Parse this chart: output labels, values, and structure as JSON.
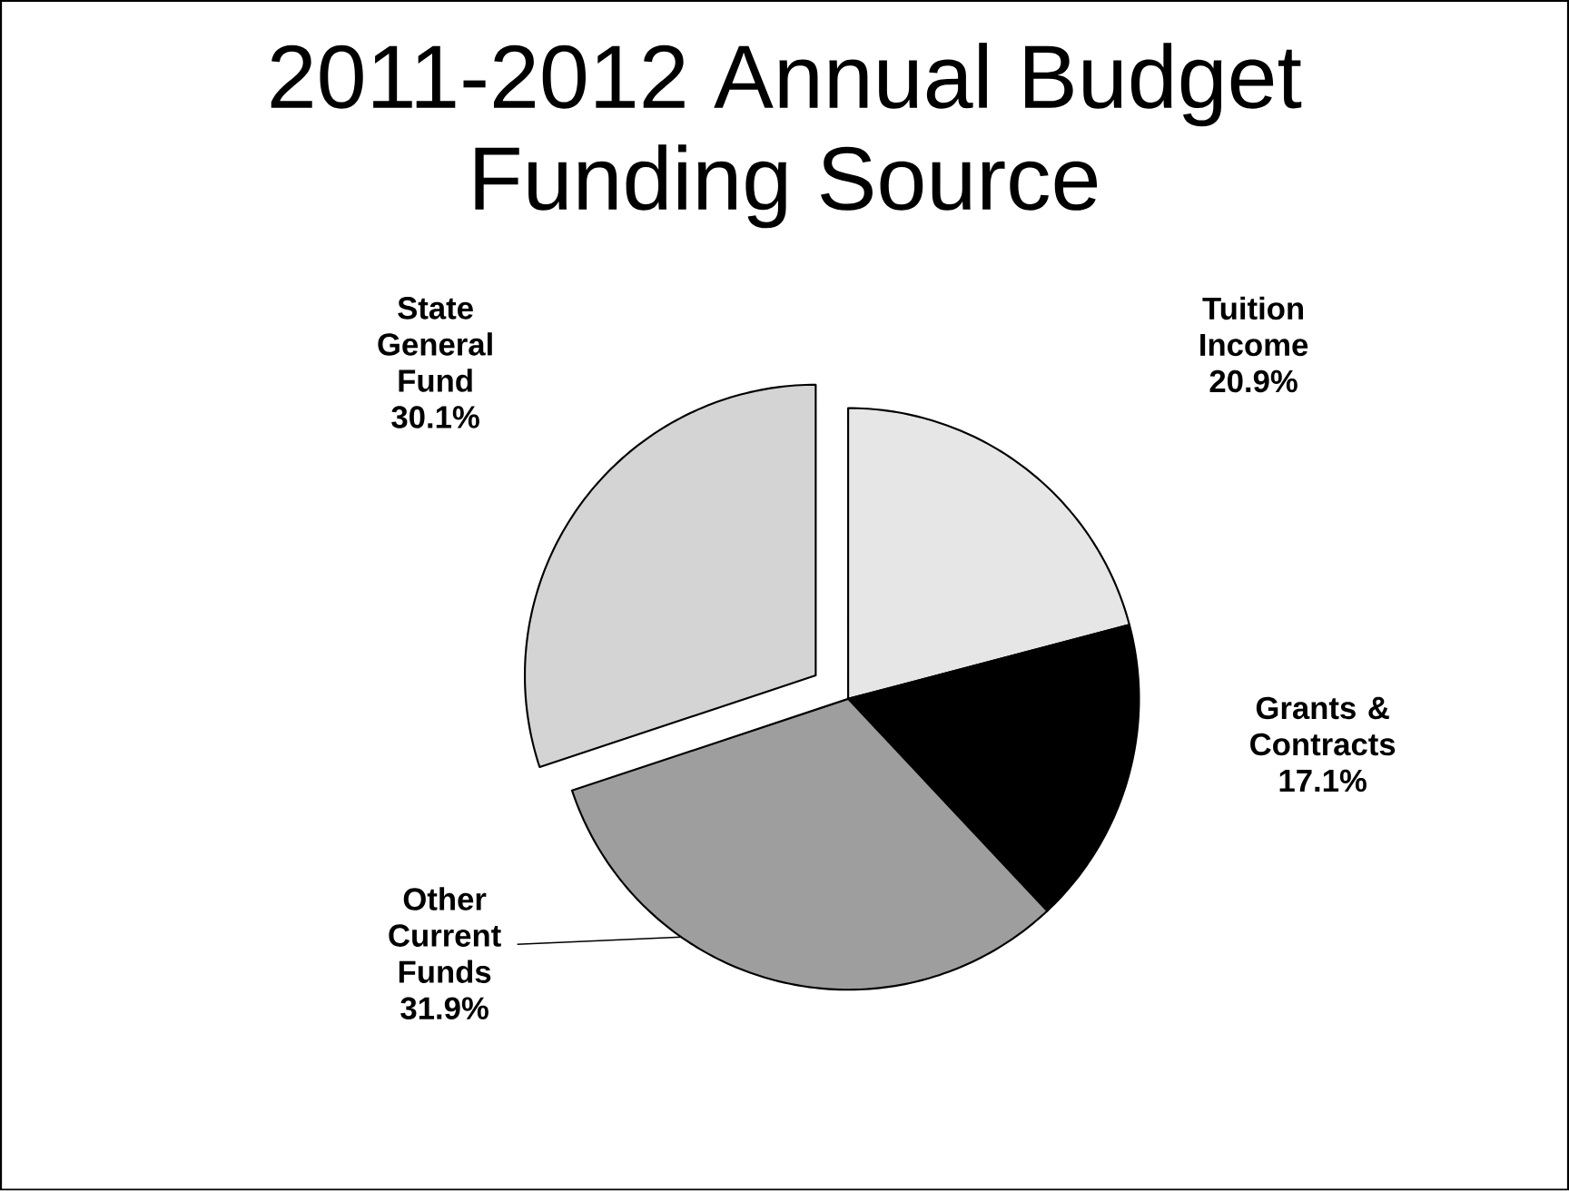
{
  "chart_data": {
    "type": "pie",
    "title": "2011-2012 Annual Budget Funding Source",
    "categories": [
      "Tuition Income",
      "Grants & Contracts",
      "Other Current Funds",
      "State General Fund"
    ],
    "values": [
      20.9,
      17.1,
      31.9,
      30.1
    ],
    "value_labels": [
      "20.9%",
      "17.1%",
      "31.9%",
      "30.1%"
    ],
    "colors": [
      "#e6e6e6",
      "#000000",
      "#9e9e9e",
      "#d4d4d4"
    ]
  }
}
